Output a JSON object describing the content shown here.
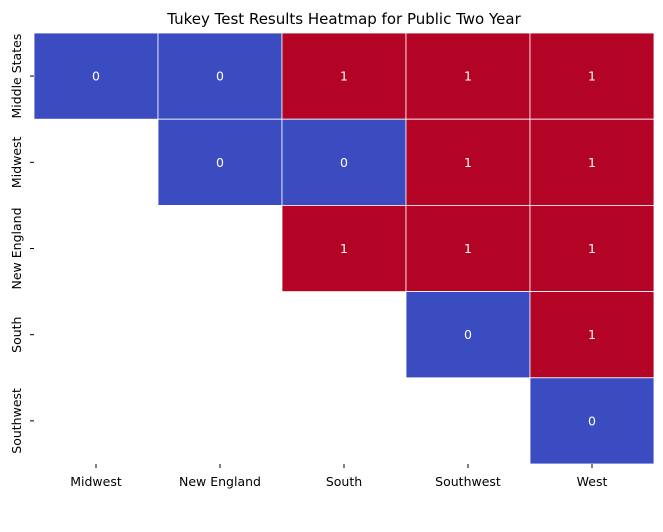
{
  "chart_data": {
    "type": "heatmap",
    "title": "Tukey Test Results Heatmap for Public Two Year",
    "xlabel": "",
    "ylabel": "",
    "x_categories": [
      "Midwest",
      "New England",
      "South",
      "Southwest",
      "West"
    ],
    "y_categories": [
      "Middle States",
      "Midwest",
      "New England",
      "South",
      "Southwest"
    ],
    "values": [
      [
        0,
        0,
        1,
        1,
        1
      ],
      [
        null,
        0,
        0,
        1,
        1
      ],
      [
        null,
        null,
        1,
        1,
        1
      ],
      [
        null,
        null,
        null,
        0,
        1
      ],
      [
        null,
        null,
        null,
        null,
        0
      ]
    ],
    "colormap": {
      "0": "#3b4cc0",
      "1": "#b40426"
    },
    "annotation_color": "#ffffff",
    "grid_line_color": "#ffffff",
    "colorbar": false
  }
}
